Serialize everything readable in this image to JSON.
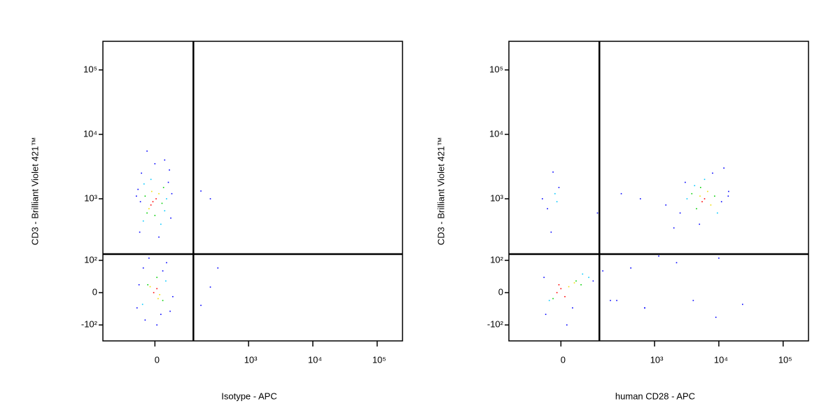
{
  "chart_data": [
    {
      "type": "scatter",
      "xscale": "biexponential",
      "yscale": "biexponential",
      "x_label": "Isotype - APC",
      "y_label": "CD3 - Brilliant Violet 421™",
      "xlim": [
        -220,
        248000
      ],
      "ylim": [
        -190,
        278000
      ],
      "xticks": [
        0,
        {
          "value": 1000,
          "label": "10³"
        },
        {
          "value": 10000,
          "label": "10⁴"
        },
        {
          "value": 100000,
          "label": "10⁵"
        }
      ],
      "yticks": [
        {
          "value": -100,
          "label": "-10²"
        },
        0,
        {
          "value": 100,
          "label": "10²"
        },
        {
          "value": 1000,
          "label": "10³"
        },
        {
          "value": 10000,
          "label": "10⁴"
        },
        {
          "value": 100000,
          "label": "10⁵"
        }
      ],
      "gate": [
        130,
        130
      ],
      "series": [
        {
          "color": "#0000ff",
          "x": [
            -40,
            -35,
            38,
            42,
            -45,
            0,
            10,
            -20,
            35,
            -38,
            25,
            -50,
            45,
            15,
            -25,
            -42,
            40,
            -30,
            5,
            30,
            -15,
            48,
            -48,
            20,
            175,
            250,
            330,
            250,
            175
          ],
          "y": [
            300,
            2500,
            2800,
            500,
            1400,
            3500,
            250,
            5500,
            1800,
            900,
            4000,
            1100,
            1200,
            -60,
            -80,
            20,
            -50,
            70,
            -100,
            90,
            110,
            -10,
            -40,
            60,
            1320,
            1000,
            70,
            14,
            -33
          ]
        },
        {
          "color": "#00c8ff",
          "x": [
            -30,
            25,
            -28,
            30,
            -10,
            15,
            -32,
            28
          ],
          "y": [
            450,
            650,
            1700,
            1000,
            2000,
            400,
            -30,
            30
          ]
        },
        {
          "color": "#00d000",
          "x": [
            -20,
            18,
            -25,
            22,
            0,
            -18,
            20,
            5
          ],
          "y": [
            600,
            850,
            1100,
            1500,
            550,
            20,
            -20,
            40
          ]
        },
        {
          "color": "#f0e000",
          "x": [
            -15,
            10,
            -8,
            12,
            -12,
            8
          ],
          "y": [
            700,
            1200,
            1300,
            -5,
            15,
            -15
          ]
        },
        {
          "color": "#ff0000",
          "x": [
            -5,
            3,
            -10,
            -3,
            5
          ],
          "y": [
            900,
            1000,
            800,
            0,
            10
          ]
        }
      ]
    },
    {
      "type": "scatter",
      "xscale": "biexponential",
      "yscale": "biexponential",
      "x_label": "human CD28 - APC",
      "y_label": "CD3 - Brilliant Violet 421™",
      "xlim": [
        -220,
        248000
      ],
      "ylim": [
        -190,
        278000
      ],
      "xticks": [
        0,
        {
          "value": 1000,
          "label": "10³"
        },
        {
          "value": 10000,
          "label": "10⁴"
        },
        {
          "value": 100000,
          "label": "10⁵"
        }
      ],
      "yticks": [
        {
          "value": -100,
          "label": "-10²"
        },
        0,
        {
          "value": 100,
          "label": "10²"
        },
        {
          "value": 1000,
          "label": "10³"
        },
        {
          "value": 10000,
          "label": "10⁴"
        },
        {
          "value": 100000,
          "label": "10⁵"
        }
      ],
      "gate": [
        130,
        130
      ],
      "series": [
        {
          "color": "#0000ff",
          "x": [
            -40,
            100,
            149,
            -35,
            -5,
            254,
            425,
            704,
            1162,
            2500,
            3000,
            11000,
            14200,
            2000,
            8000,
            5000,
            12000,
            -45,
            15,
            -50,
            -20,
            120,
            300,
            600,
            1500,
            2200,
            9000,
            23400,
            -25,
            30,
            4000,
            10000,
            200,
            14000,
            700
          ],
          "y": [
            -60,
            30,
            60,
            700,
            1500,
            -20,
            70,
            -40,
            120,
            600,
            1800,
            900,
            1300,
            350,
            2500,
            400,
            3000,
            40,
            -100,
            1000,
            2600,
            600,
            1200,
            1000,
            800,
            90,
            -70,
            -30,
            300,
            -40,
            -20,
            110,
            -20,
            1100,
            -40
          ]
        },
        {
          "color": "#00c8ff",
          "x": [
            -30,
            60,
            82,
            -10,
            3200,
            9500,
            6000,
            4200,
            -15
          ],
          "y": [
            -20,
            50,
            40,
            900,
            1000,
            600,
            2000,
            1600,
            1200
          ]
        },
        {
          "color": "#00d000",
          "x": [
            40,
            55,
            -20,
            4500,
            8600,
            5200,
            3800
          ],
          "y": [
            30,
            20,
            -15,
            700,
            1100,
            1500,
            1200
          ]
        },
        {
          "color": "#f0e000",
          "x": [
            20,
            35,
            5100,
            6700,
            7500
          ],
          "y": [
            15,
            25,
            1100,
            1300,
            800
          ]
        },
        {
          "color": "#ff0000",
          "x": [
            -10,
            0,
            10,
            -5,
            6000,
            5500
          ],
          "y": [
            0,
            10,
            -10,
            20,
            1000,
            900
          ]
        }
      ]
    }
  ]
}
